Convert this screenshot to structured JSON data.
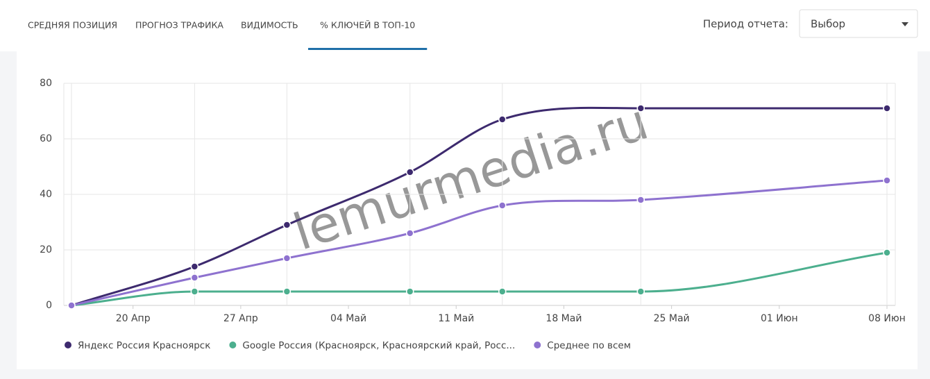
{
  "tabs": [
    "СРЕДНЯЯ ПОЗИЦИЯ",
    "ПРОГНОЗ ТРАФИКА",
    "ВИДИМОСТЬ",
    "% КЛЮЧЕЙ В ТОП-10"
  ],
  "active_tab": 3,
  "period_label": "Период отчета:",
  "period_select": "Выбор",
  "watermark": "lemurmedia.ru",
  "chart_data": {
    "type": "line",
    "x": [
      "04-16",
      "04-24",
      "04-30",
      "05-08",
      "05-14",
      "05-23",
      "06-08"
    ],
    "xlim": [
      "04-16",
      "06-08"
    ],
    "xticks": [
      {
        "value": "04-20",
        "label": "20 Апр"
      },
      {
        "value": "04-27",
        "label": "27 Апр"
      },
      {
        "value": "05-04",
        "label": "04 Май"
      },
      {
        "value": "05-11",
        "label": "11 Май"
      },
      {
        "value": "05-18",
        "label": "18 Май"
      },
      {
        "value": "05-25",
        "label": "25 Май"
      },
      {
        "value": "06-01",
        "label": "01 Июн"
      },
      {
        "value": "06-08",
        "label": "08 Июн"
      }
    ],
    "ylim": [
      0,
      80
    ],
    "yticks": [
      0,
      20,
      40,
      60,
      80
    ],
    "grid": true,
    "legend": "bottom-left",
    "series": [
      {
        "name": "Яндекс Россия Красноярск",
        "color": "#3d2a6e",
        "values": [
          0,
          14,
          29,
          48,
          67,
          71,
          71
        ]
      },
      {
        "name": "Google Россия (Красноярск, Красноярский край, Росс...",
        "color": "#4caf8e",
        "values": [
          0,
          5,
          5,
          5,
          5,
          5,
          19
        ]
      },
      {
        "name": "Среднее по всем",
        "color": "#8e72cf",
        "values": [
          0,
          10,
          17,
          26,
          36,
          38,
          45
        ]
      }
    ]
  }
}
